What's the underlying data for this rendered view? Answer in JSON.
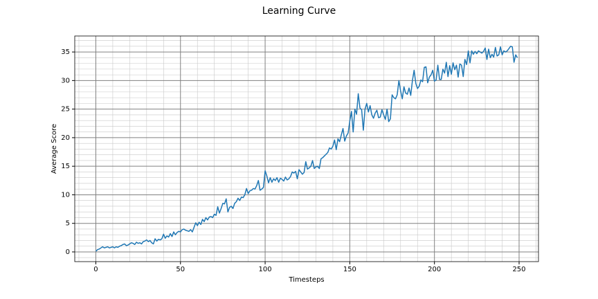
{
  "chart_data": {
    "type": "line",
    "title": "Learning Curve",
    "xlabel": "Timesteps",
    "ylabel": "Average Score",
    "color": "#1f77b4",
    "grid": true,
    "minor_grid": true,
    "xlim": [
      -12.45,
      261.45
    ],
    "ylim": [
      -1.7,
      37.8
    ],
    "xticks": [
      0,
      50,
      100,
      150,
      200,
      250
    ],
    "yticks": [
      0,
      5,
      10,
      15,
      20,
      25,
      30,
      35
    ],
    "xminorticks": [
      -10,
      10,
      20,
      30,
      40,
      60,
      70,
      80,
      90,
      110,
      120,
      130,
      140,
      160,
      170,
      180,
      190,
      210,
      220,
      230,
      240,
      260
    ],
    "yminorticks": [
      -1,
      1,
      2,
      3,
      4,
      6,
      7,
      8,
      9,
      11,
      12,
      13,
      14,
      16,
      17,
      18,
      19,
      21,
      22,
      23,
      24,
      26,
      27,
      28,
      29,
      31,
      32,
      33,
      34,
      36,
      37
    ],
    "x": [
      0,
      1,
      2,
      3,
      4,
      5,
      6,
      7,
      8,
      9,
      10,
      11,
      12,
      13,
      14,
      15,
      16,
      17,
      18,
      19,
      20,
      21,
      22,
      23,
      24,
      25,
      26,
      27,
      28,
      29,
      30,
      31,
      32,
      33,
      34,
      35,
      36,
      37,
      38,
      39,
      40,
      41,
      42,
      43,
      44,
      45,
      46,
      47,
      48,
      49,
      50,
      51,
      52,
      53,
      54,
      55,
      56,
      57,
      58,
      59,
      60,
      61,
      62,
      63,
      64,
      65,
      66,
      67,
      68,
      69,
      70,
      71,
      72,
      73,
      74,
      75,
      76,
      77,
      78,
      79,
      80,
      81,
      82,
      83,
      84,
      85,
      86,
      87,
      88,
      89,
      90,
      91,
      92,
      93,
      94,
      95,
      96,
      97,
      98,
      99,
      100,
      101,
      102,
      103,
      104,
      105,
      106,
      107,
      108,
      109,
      110,
      111,
      112,
      113,
      114,
      115,
      116,
      117,
      118,
      119,
      120,
      121,
      122,
      123,
      124,
      125,
      126,
      127,
      128,
      129,
      130,
      131,
      132,
      133,
      134,
      135,
      136,
      137,
      138,
      139,
      140,
      141,
      142,
      143,
      144,
      145,
      146,
      147,
      148,
      149,
      150,
      151,
      152,
      153,
      154,
      155,
      156,
      157,
      158,
      159,
      160,
      161,
      162,
      163,
      164,
      165,
      166,
      167,
      168,
      169,
      170,
      171,
      172,
      173,
      174,
      175,
      176,
      177,
      178,
      179,
      180,
      181,
      182,
      183,
      184,
      185,
      186,
      187,
      188,
      189,
      190,
      191,
      192,
      193,
      194,
      195,
      196,
      197,
      198,
      199,
      200,
      201,
      202,
      203,
      204,
      205,
      206,
      207,
      208,
      209,
      210,
      211,
      212,
      213,
      214,
      215,
      216,
      217,
      218,
      219,
      220,
      221,
      222,
      223,
      224,
      225,
      226,
      227,
      228,
      229,
      230,
      231,
      232,
      233,
      234,
      235,
      236,
      237,
      238,
      239,
      240,
      241,
      242,
      243,
      244,
      245,
      246,
      247,
      248,
      249
    ],
    "values": [
      0.1,
      0.4,
      0.5,
      0.7,
      0.9,
      0.7,
      0.8,
      0.9,
      0.7,
      0.8,
      0.9,
      0.7,
      0.9,
      0.8,
      1.0,
      1.1,
      1.3,
      1.4,
      1.1,
      1.2,
      1.4,
      1.6,
      1.5,
      1.3,
      1.7,
      1.5,
      1.6,
      1.4,
      1.8,
      1.9,
      2.1,
      1.8,
      2.0,
      1.6,
      1.4,
      2.3,
      1.9,
      2.2,
      2.1,
      2.3,
      3.1,
      2.4,
      2.8,
      2.6,
      3.2,
      2.7,
      3.5,
      3.0,
      3.4,
      3.6,
      3.5,
      3.9,
      4.0,
      3.8,
      3.7,
      3.6,
      3.9,
      3.5,
      4.3,
      5.1,
      4.6,
      5.2,
      4.8,
      5.7,
      5.3,
      6.0,
      5.6,
      6.1,
      6.2,
      6.0,
      6.6,
      6.4,
      7.9,
      6.8,
      7.6,
      8.5,
      8.4,
      9.3,
      7.0,
      7.8,
      8.0,
      7.6,
      8.5,
      8.8,
      9.4,
      9.0,
      9.6,
      9.5,
      10.0,
      11.1,
      10.2,
      10.7,
      10.8,
      11.1,
      11.0,
      11.6,
      12.5,
      10.8,
      11.0,
      11.3,
      14.2,
      13.3,
      12.1,
      13.0,
      12.2,
      12.8,
      12.5,
      13.0,
      12.2,
      12.9,
      12.7,
      12.4,
      13.1,
      12.6,
      12.8,
      13.2,
      14.0,
      13.8,
      14.1,
      12.8,
      14.4,
      14.0,
      13.6,
      13.9,
      15.8,
      14.5,
      14.7,
      15.0,
      16.0,
      14.6,
      14.9,
      15.0,
      14.6,
      16.3,
      16.5,
      16.8,
      17.1,
      17.4,
      18.2,
      18.0,
      18.5,
      19.6,
      17.9,
      19.8,
      19.3,
      20.5,
      21.6,
      19.4,
      20.3,
      20.8,
      22.9,
      24.6,
      21.0,
      25.0,
      24.1,
      27.7,
      25.2,
      24.9,
      21.3,
      25.0,
      26.0,
      24.5,
      25.6,
      24.0,
      23.4,
      24.3,
      24.8,
      23.5,
      23.6,
      24.9,
      24.0,
      23.2,
      25.0,
      22.8,
      23.3,
      27.5,
      27.0,
      26.8,
      27.5,
      30.0,
      28.2,
      26.8,
      28.9,
      27.8,
      27.6,
      28.7,
      27.4,
      30.0,
      31.8,
      29.5,
      28.6,
      29.0,
      30.1,
      29.8,
      32.3,
      32.4,
      29.6,
      30.6,
      31.0,
      31.8,
      29.9,
      30.1,
      32.7,
      30.2,
      30.2,
      32.0,
      31.3,
      33.2,
      30.7,
      32.6,
      31.1,
      33.1,
      31.9,
      32.7,
      30.6,
      32.9,
      32.7,
      30.7,
      33.7,
      32.8,
      35.2,
      33.1,
      35.2,
      34.6,
      35.1,
      34.7,
      35.2,
      35.0,
      34.8,
      35.1,
      35.7,
      33.7,
      35.5,
      34.0,
      34.6,
      34.1,
      35.8,
      34.3,
      34.5,
      35.9,
      34.5,
      35.2,
      35.0,
      35.2,
      35.6,
      36.0,
      35.9,
      33.2,
      34.5,
      34.0
    ]
  }
}
